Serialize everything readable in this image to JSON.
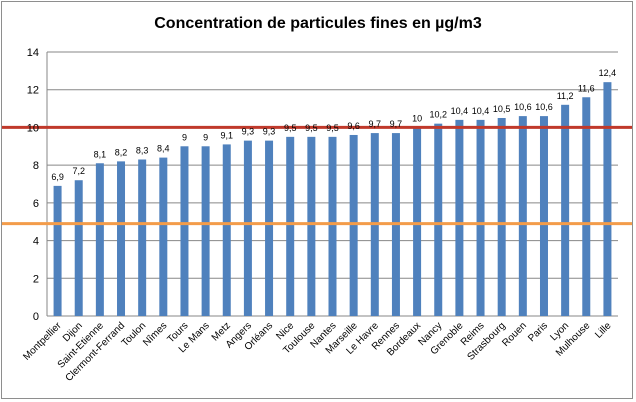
{
  "chart_data": {
    "type": "bar",
    "title": "Concentration de particules fines en µg/m3",
    "categories": [
      "Montpellier",
      "Dijon",
      "Saint-Etienne",
      "Clermont-Ferrand",
      "Toulon",
      "Nîmes",
      "Tours",
      "Le Mans",
      "Metz",
      "Angers",
      "Orléans",
      "Nice",
      "Toulouse",
      "Nantes",
      "Marseille",
      "Le Havre",
      "Rennes",
      "Bordeaux",
      "Nancy",
      "Grenoble",
      "Reims",
      "Strasbourg",
      "Rouen",
      "Paris",
      "Lyon",
      "Mulhouse",
      "Lille"
    ],
    "values": [
      6.9,
      7.2,
      8.1,
      8.2,
      8.3,
      8.4,
      9,
      9,
      9.1,
      9.3,
      9.3,
      9.5,
      9.5,
      9.5,
      9.6,
      9.7,
      9.7,
      10,
      10.2,
      10.4,
      10.4,
      10.5,
      10.6,
      10.6,
      11.2,
      11.6,
      12.4
    ],
    "value_labels": [
      "6,9",
      "7,2",
      "8,1",
      "8,2",
      "8,3",
      "8,4",
      "9",
      "9",
      "9,1",
      "9,3",
      "9,3",
      "9,5",
      "9,5",
      "9,5",
      "9,6",
      "9,7",
      "9,7",
      "10",
      "10,2",
      "10,4",
      "10,4",
      "10,5",
      "10,6",
      "10,6",
      "11,2",
      "11,6",
      "12,4"
    ],
    "yticks": [
      "0",
      "2",
      "4",
      "6",
      "8",
      "10",
      "12",
      "14"
    ],
    "ylim": [
      0,
      14
    ],
    "grid": true,
    "bar_color": "#4f81bd",
    "reference_lines": [
      {
        "value": 10,
        "color": "#c0392b"
      },
      {
        "value": 4.9,
        "color": "#f39c4a"
      }
    ]
  }
}
